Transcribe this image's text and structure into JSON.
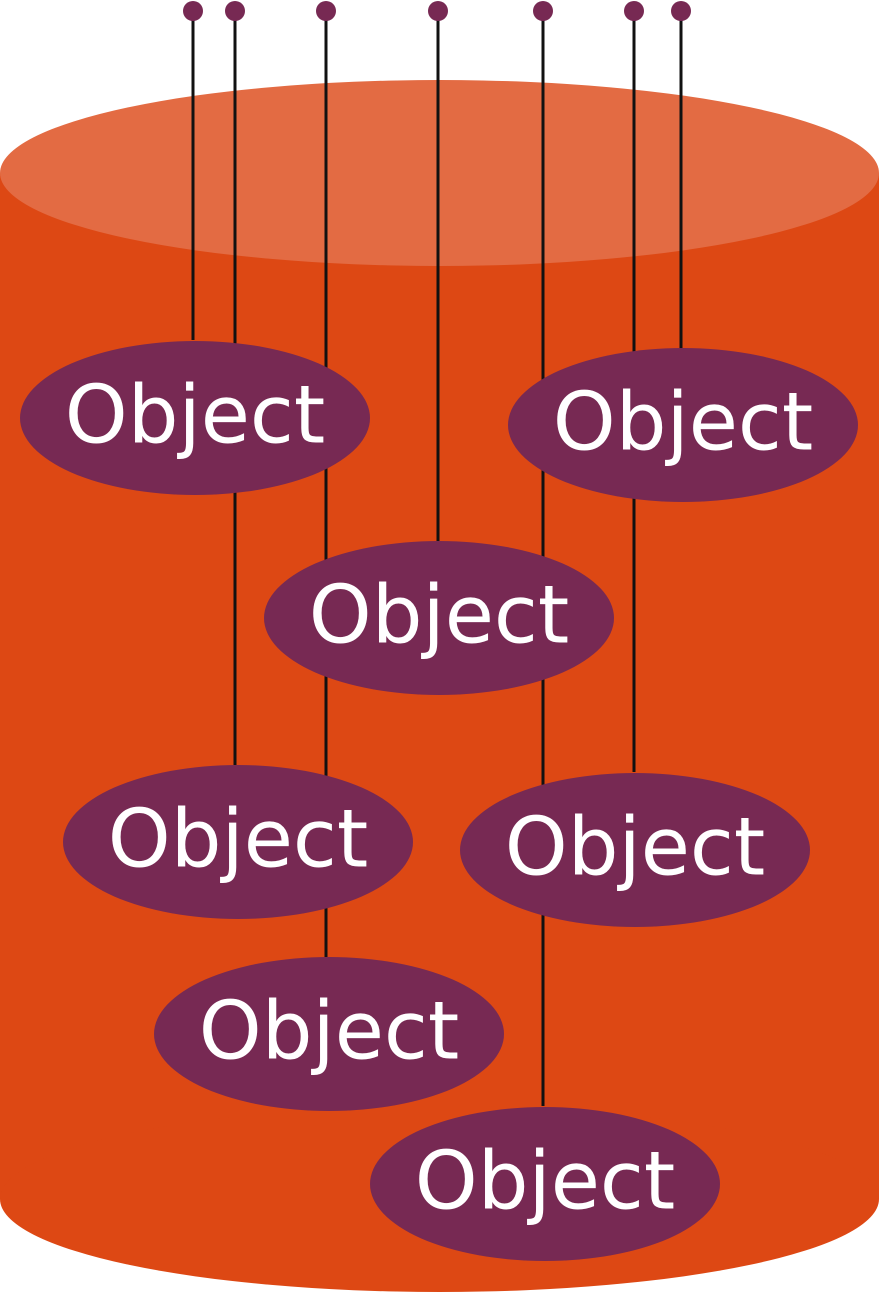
{
  "colors": {
    "cylinder_body": "#dd4814",
    "cylinder_top": "#e36b43",
    "object_fill": "#772953",
    "object_text": "#ffffff",
    "wire": "#111111",
    "pin": "#772953"
  },
  "objects": [
    {
      "label": "Object"
    },
    {
      "label": "Object"
    },
    {
      "label": "Object"
    },
    {
      "label": "Object"
    },
    {
      "label": "Object"
    },
    {
      "label": "Object"
    },
    {
      "label": "Object"
    }
  ]
}
